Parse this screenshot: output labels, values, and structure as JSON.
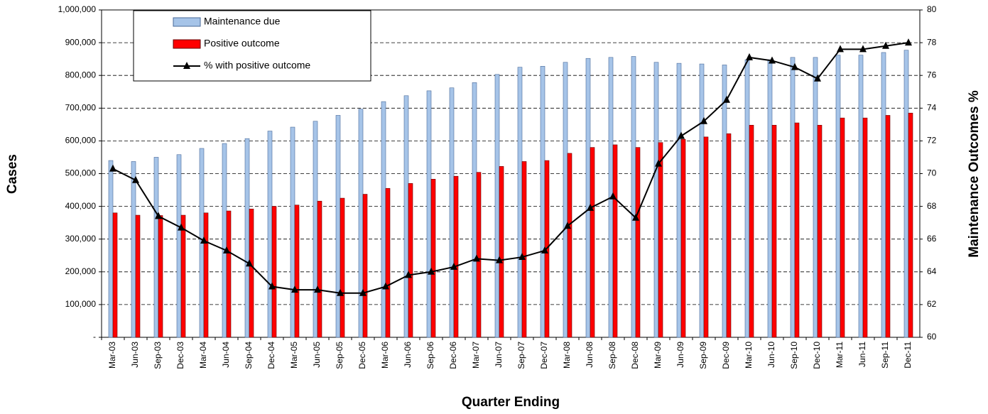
{
  "chart_data": {
    "type": "bar",
    "x_label": "Quarter Ending",
    "y_label": "Cases",
    "y2_label": "Maintenance Outcomes %",
    "categories": [
      "Mar-03",
      "Jun-03",
      "Sep-03",
      "Dec-03",
      "Mar-04",
      "Jun-04",
      "Sep-04",
      "Dec-04",
      "Mar-05",
      "Jun-05",
      "Sep-05",
      "Dec-05",
      "Mar-06",
      "Jun-06",
      "Sep-06",
      "Dec-06",
      "Mar-07",
      "Jun-07",
      "Sep-07",
      "Dec-07",
      "Mar-08",
      "Jun-08",
      "Sep-08",
      "Dec-08",
      "Mar-09",
      "Jun-09",
      "Sep-09",
      "Dec-09",
      "Mar-10",
      "Jun-10",
      "Sep-10",
      "Dec-10",
      "Mar-11",
      "Jun-11",
      "Sep-11",
      "Dec-11"
    ],
    "series": [
      {
        "name": "Maintenance due",
        "type": "bar",
        "color": "#a6c4e8",
        "values": [
          540000,
          537000,
          550000,
          558000,
          577000,
          592000,
          607000,
          630000,
          642000,
          660000,
          678000,
          697000,
          720000,
          738000,
          753000,
          762000,
          778000,
          803000,
          825000,
          828000,
          840000,
          852000,
          855000,
          858000,
          840000,
          837000,
          835000,
          832000,
          848000,
          848000,
          855000,
          855000,
          862000,
          862000,
          870000,
          877000
        ]
      },
      {
        "name": "Positive outcome",
        "type": "bar",
        "color": "#ff0000",
        "values": [
          380000,
          373000,
          372000,
          373000,
          380000,
          386000,
          392000,
          400000,
          404000,
          416000,
          425000,
          437000,
          455000,
          470000,
          483000,
          492000,
          504000,
          522000,
          537000,
          540000,
          562000,
          580000,
          588000,
          580000,
          595000,
          605000,
          612000,
          622000,
          648000,
          648000,
          655000,
          648000,
          670000,
          670000,
          678000,
          685000
        ]
      },
      {
        "name": "% with positive outcome",
        "type": "line",
        "axis": "y2",
        "color": "#000000",
        "values": [
          70.3,
          69.6,
          67.4,
          66.7,
          65.9,
          65.3,
          64.5,
          63.1,
          62.9,
          62.9,
          62.7,
          62.7,
          63.1,
          63.8,
          64.0,
          64.3,
          64.8,
          64.7,
          64.9,
          65.3,
          66.8,
          67.9,
          68.6,
          67.3,
          70.6,
          72.3,
          73.2,
          74.5,
          77.1,
          76.9,
          76.5,
          75.8,
          77.6,
          77.6,
          77.8,
          78.0
        ]
      }
    ],
    "ylim": [
      0,
      1000000
    ],
    "yticks": [
      {
        "value": 0,
        "label": "-"
      },
      {
        "value": 100000,
        "label": "100,000"
      },
      {
        "value": 200000,
        "label": "200,000"
      },
      {
        "value": 300000,
        "label": "300,000"
      },
      {
        "value": 400000,
        "label": "400,000"
      },
      {
        "value": 500000,
        "label": "500,000"
      },
      {
        "value": 600000,
        "label": "600,000"
      },
      {
        "value": 700000,
        "label": "700,000"
      },
      {
        "value": 800000,
        "label": "800,000"
      },
      {
        "value": 900000,
        "label": "900,000"
      },
      {
        "value": 1000000,
        "label": "1,000,000"
      }
    ],
    "y2lim": [
      60,
      80
    ],
    "y2ticks": [
      60,
      62,
      64,
      66,
      68,
      70,
      72,
      74,
      76,
      78,
      80
    ],
    "grid": true
  }
}
